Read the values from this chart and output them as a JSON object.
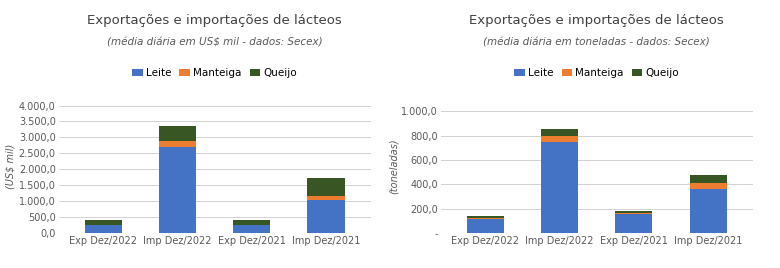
{
  "left": {
    "title": "Exportações e importações de lácteos",
    "subtitle": "(média diária em US$ mil - dados: Secex)",
    "ylabel": "(US$ mil)",
    "ylim": [
      0,
      4200
    ],
    "yticks": [
      0,
      500,
      1000,
      1500,
      2000,
      2500,
      3000,
      3500,
      4000
    ],
    "categories": [
      "Exp Dez/2022",
      "Imp Dez/2022",
      "Exp Dez/2021",
      "Imp Dez/2021"
    ],
    "leite": [
      255,
      2700,
      255,
      1050
    ],
    "manteiga": [
      5,
      200,
      5,
      130
    ],
    "queijo": [
      150,
      450,
      150,
      550
    ]
  },
  "right": {
    "title": "Exportações e importações de lácteos",
    "subtitle": "(média diária em toneladas - dados: Secex)",
    "ylabel": "(toneladas)",
    "ylim": [
      0,
      1100
    ],
    "yticks": [
      0,
      200,
      400,
      600,
      800,
      1000
    ],
    "zero_label": "-",
    "categories": [
      "Exp Dez/2022",
      "Imp Dez/2022",
      "Exp Dez/2021",
      "Imp Dez/2021"
    ],
    "leite": [
      120,
      745,
      160,
      360
    ],
    "manteiga": [
      5,
      50,
      5,
      55
    ],
    "queijo": [
      18,
      60,
      15,
      65
    ]
  },
  "colors": {
    "leite": "#4472C4",
    "manteiga": "#ED7D31",
    "queijo": "#375623"
  },
  "legend_labels": [
    "Leite",
    "Manteiga",
    "Queijo"
  ],
  "title_color": "#404040",
  "subtitle_color": "#595959",
  "axis_color": "#595959",
  "grid_color": "#BFBFBF",
  "background_color": "#FFFFFF",
  "title_fontsize": 9.5,
  "subtitle_fontsize": 7.5,
  "tick_fontsize": 7,
  "ylabel_fontsize": 7,
  "legend_fontsize": 7.5
}
